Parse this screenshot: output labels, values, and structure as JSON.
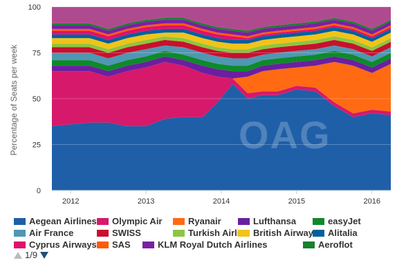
{
  "chart_data": {
    "type": "area",
    "stacked": true,
    "ylabel": "Percentage of Seats per week",
    "ylim": [
      0,
      100
    ],
    "yticks": [
      "0",
      "25",
      "50",
      "75",
      "100"
    ],
    "xticks": [
      "2012",
      "2013",
      "2014",
      "2015",
      "2016"
    ],
    "x": [
      2011.75,
      2012.0,
      2012.25,
      2012.5,
      2012.75,
      2013.0,
      2013.25,
      2013.5,
      2013.75,
      2013.95,
      2014.15,
      2014.35,
      2014.55,
      2014.75,
      2015.0,
      2015.25,
      2015.5,
      2015.75,
      2016.0,
      2016.25
    ],
    "grid": true,
    "watermark": "OAG",
    "series": [
      {
        "name": "Aegean Airlines",
        "color": "#1f5fa8",
        "values": [
          35,
          36,
          37,
          37,
          35,
          35,
          39,
          40,
          40,
          48,
          58,
          50,
          52,
          52,
          55,
          54,
          46,
          40,
          42,
          41
        ]
      },
      {
        "name": "Olympic Air",
        "color": "#d6196b",
        "values": [
          30,
          29,
          28,
          25,
          30,
          32,
          31,
          28,
          24,
          14,
          3,
          3,
          2,
          2,
          2,
          2,
          2,
          2,
          2,
          2
        ]
      },
      {
        "name": "Ryanair",
        "color": "#ff6a13",
        "values": [
          0,
          0,
          0,
          0,
          0,
          0,
          0,
          0,
          0,
          0,
          0,
          9,
          11,
          12,
          10,
          12,
          22,
          26,
          20,
          26
        ]
      },
      {
        "name": "Lufthansa",
        "color": "#6b1fa0",
        "values": [
          3,
          3,
          3,
          3,
          3,
          3,
          3,
          3,
          4,
          4,
          4,
          3,
          3,
          3,
          3,
          3,
          3,
          3,
          3,
          3
        ]
      },
      {
        "name": "easyJet",
        "color": "#0e8a2a",
        "values": [
          3,
          3,
          3,
          3,
          3,
          3,
          3,
          3,
          3,
          3,
          3,
          3,
          3,
          3,
          3,
          3,
          3,
          3,
          3,
          3
        ]
      },
      {
        "name": "Air France",
        "color": "#4f97b3",
        "values": [
          4,
          4,
          4,
          4,
          4,
          4,
          3,
          4,
          4,
          4,
          4,
          4,
          3,
          3,
          3,
          3,
          3,
          3,
          3,
          3
        ]
      },
      {
        "name": "SWISS",
        "color": "#c8102e",
        "values": [
          3,
          3,
          3,
          3,
          3,
          3,
          3,
          3,
          3,
          3,
          3,
          3,
          3,
          3,
          3,
          3,
          3,
          3,
          3,
          3
        ]
      },
      {
        "name": "Turkish Airlines",
        "color": "#8dc63f",
        "values": [
          2,
          2,
          2,
          2,
          2,
          2,
          2,
          2,
          2,
          2,
          2,
          2,
          2,
          2,
          2,
          2,
          2,
          2,
          2,
          2
        ]
      },
      {
        "name": "British Airways",
        "color": "#f2c318",
        "values": [
          3,
          3,
          3,
          3,
          3,
          3,
          2,
          3,
          3,
          3,
          3,
          3,
          3,
          3,
          3,
          3,
          3,
          3,
          3,
          3
        ]
      },
      {
        "name": "Alitalia",
        "color": "#00609e",
        "values": [
          2,
          2,
          2,
          2,
          2,
          2,
          2,
          2,
          2,
          2,
          2,
          2,
          2,
          2,
          2,
          2,
          2,
          2,
          2,
          2
        ]
      },
      {
        "name": "Cyprus Airways",
        "color": "#e0106c",
        "values": [
          2,
          2,
          2,
          2,
          2,
          2,
          2,
          2,
          2,
          2,
          2,
          1,
          1,
          1,
          1,
          1,
          1,
          1,
          1,
          1
        ]
      },
      {
        "name": "SAS",
        "color": "#ff5a0a",
        "values": [
          1,
          1,
          1,
          1,
          1,
          1,
          1,
          1,
          1,
          1,
          1,
          1,
          1,
          1,
          1,
          1,
          1,
          1,
          1,
          1
        ]
      },
      {
        "name": "KLM Royal Dutch Airlines",
        "color": "#7b1fa2",
        "values": [
          2,
          2,
          2,
          2,
          2,
          2,
          2,
          2,
          2,
          2,
          2,
          2,
          2,
          2,
          2,
          2,
          2,
          2,
          2,
          2
        ]
      },
      {
        "name": "Aeroflot",
        "color": "#1a7f2e",
        "values": [
          1,
          1,
          1,
          1,
          1,
          1,
          1,
          1,
          1,
          1,
          1,
          1,
          1,
          1,
          1,
          1,
          1,
          1,
          1,
          1
        ]
      }
    ]
  },
  "legend_rows": [
    [
      {
        "name": "Aegean Airlines",
        "color": "#1f5fa8"
      },
      {
        "name": "Olympic Air",
        "color": "#d6196b"
      },
      {
        "name": "Ryanair",
        "color": "#ff6a13"
      },
      {
        "name": "Lufthansa",
        "color": "#6b1fa0"
      },
      {
        "name": "easyJet",
        "color": "#0e8a2a"
      }
    ],
    [
      {
        "name": "Air France",
        "color": "#4f97b3"
      },
      {
        "name": "SWISS",
        "color": "#c8102e"
      },
      {
        "name": "Turkish Airlines",
        "color": "#8dc63f"
      },
      {
        "name": "British Airways",
        "color": "#f2c318"
      },
      {
        "name": "Alitalia",
        "color": "#00609e"
      }
    ],
    [
      {
        "name": "Cyprus Airways",
        "color": "#e0106c"
      },
      {
        "name": "SAS",
        "color": "#ff5a0a"
      },
      {
        "name": "KLM Royal Dutch Airlines",
        "color": "#7b1fa2"
      },
      {
        "name": "Aeroflot",
        "color": "#1a7f2e"
      }
    ]
  ],
  "pager": {
    "text": "1/9"
  }
}
